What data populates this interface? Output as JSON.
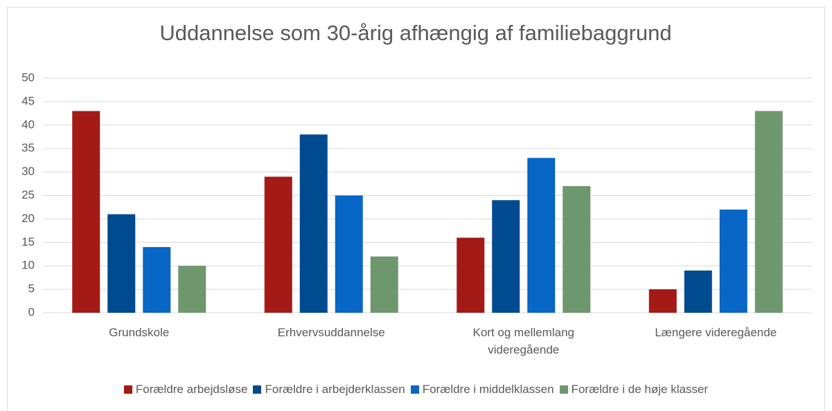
{
  "chart_data": {
    "type": "bar",
    "title": "Uddannelse som 30-årig afhængig af familiebaggrund",
    "categories": [
      "Grundskole",
      "Erhvervsuddannelse",
      "Kort og mellemlang videregående",
      "Længere videregående"
    ],
    "series": [
      {
        "name": "Forældre arbejdsløse",
        "color": "#a31a17",
        "values": [
          43,
          29,
          16,
          5
        ]
      },
      {
        "name": "Forældre i arbejderklassen",
        "color": "#004a8f",
        "values": [
          21,
          38,
          24,
          9
        ]
      },
      {
        "name": "Forældre i middelklassen",
        "color": "#0766c6",
        "values": [
          14,
          25,
          33,
          22
        ]
      },
      {
        "name": "Forældre i de høje klasser",
        "color": "#6e976d",
        "values": [
          10,
          12,
          27,
          43
        ]
      }
    ],
    "ylim": [
      0,
      50
    ],
    "yticks": [
      0,
      5,
      10,
      15,
      20,
      25,
      30,
      35,
      40,
      45,
      50
    ],
    "grid": true,
    "legend": "bottom"
  }
}
